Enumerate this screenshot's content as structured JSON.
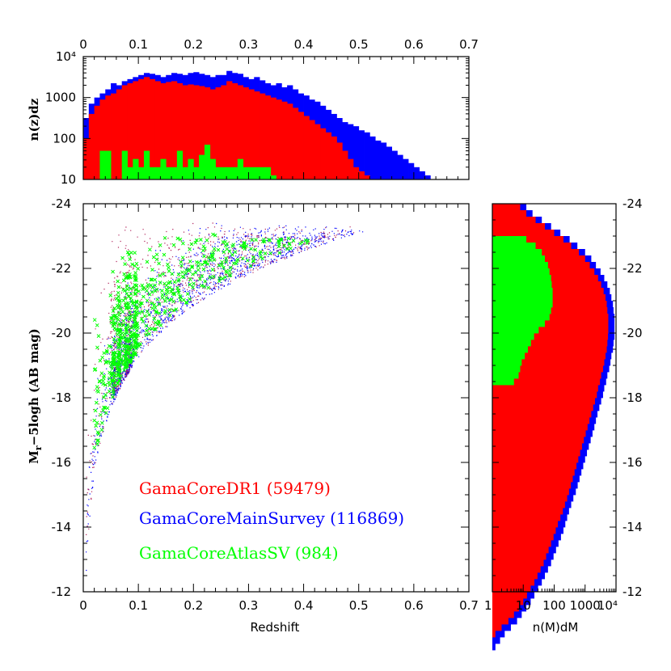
{
  "chart_data": [
    {
      "id": "top_histogram",
      "type": "histogram",
      "ylabel": "n(z)dz",
      "xlim": [
        0,
        0.7
      ],
      "ylim_log10": [
        1,
        4
      ],
      "x_ticks": [
        "0",
        "0.1",
        "0.2",
        "0.3",
        "0.4",
        "0.5",
        "0.6",
        "0.7"
      ],
      "y_ticks": [
        "10",
        "100",
        "1000",
        "10⁴"
      ],
      "bin_width": 0.01,
      "series": [
        {
          "name": "GamaCoreMainSurvey",
          "color": "#0000ff",
          "log10_counts": [
            2.5,
            2.85,
            3.0,
            3.1,
            3.2,
            3.35,
            3.3,
            3.4,
            3.45,
            3.5,
            3.55,
            3.6,
            3.58,
            3.55,
            3.5,
            3.55,
            3.6,
            3.58,
            3.55,
            3.6,
            3.62,
            3.58,
            3.55,
            3.5,
            3.55,
            3.55,
            3.65,
            3.6,
            3.58,
            3.5,
            3.45,
            3.5,
            3.42,
            3.35,
            3.3,
            3.35,
            3.25,
            3.3,
            3.2,
            3.1,
            3.05,
            2.95,
            2.9,
            2.8,
            2.7,
            2.6,
            2.5,
            2.4,
            2.35,
            2.3,
            2.2,
            2.15,
            2.05,
            1.95,
            1.9,
            1.8,
            1.7,
            1.6,
            1.5,
            1.4,
            1.3,
            1.2,
            1.1
          ]
        },
        {
          "name": "GamaCoreDR1",
          "color": "#ff0000",
          "log10_counts": [
            2.0,
            2.6,
            2.8,
            2.95,
            3.05,
            3.1,
            3.2,
            3.3,
            3.35,
            3.4,
            3.45,
            3.5,
            3.45,
            3.4,
            3.35,
            3.38,
            3.4,
            3.35,
            3.3,
            3.32,
            3.3,
            3.28,
            3.25,
            3.2,
            3.25,
            3.3,
            3.4,
            3.35,
            3.3,
            3.25,
            3.2,
            3.15,
            3.1,
            3.05,
            3.0,
            2.95,
            2.9,
            2.85,
            2.75,
            2.65,
            2.55,
            2.45,
            2.35,
            2.25,
            2.15,
            2.05,
            1.9,
            1.7,
            1.5,
            1.3,
            1.2,
            1.1
          ]
        },
        {
          "name": "GamaCoreAtlasSV",
          "color": "#00ff00",
          "log10_counts": [
            0,
            0,
            0,
            1.7,
            1.7,
            1.0,
            1.0,
            1.7,
            1.3,
            1.5,
            1.3,
            1.7,
            1.3,
            1.3,
            1.5,
            1.3,
            1.3,
            1.7,
            1.3,
            1.5,
            1.3,
            1.6,
            1.85,
            1.5,
            1.3,
            1.3,
            1.3,
            1.3,
            1.5,
            1.3,
            1.3,
            1.3,
            1.3,
            1.3,
            1.1
          ]
        }
      ]
    },
    {
      "id": "scatter",
      "type": "scatter",
      "xlabel": "Redshift",
      "ylabel": "M",
      "ylabel_sub": "r",
      "ylabel_rest": "−5logh (AB mag)",
      "xlim": [
        0,
        0.7
      ],
      "ylim": [
        -12,
        -24
      ],
      "x_ticks": [
        "0",
        "0.1",
        "0.2",
        "0.3",
        "0.4",
        "0.5",
        "0.6",
        "0.7"
      ],
      "y_ticks": [
        "-12",
        "-14",
        "-16",
        "-18",
        "-20",
        "-22",
        "-24"
      ],
      "legend": [
        {
          "label": "GamaCoreDR1 (59479)",
          "color": "#ff0000"
        },
        {
          "label": "GamaCoreMainSurvey (116869)",
          "color": "#0000ff"
        },
        {
          "label": "GamaCoreAtlasSV (984)",
          "color": "#00ff00"
        }
      ]
    },
    {
      "id": "right_histogram",
      "type": "histogram",
      "orientation": "horizontal",
      "xlabel": "n(M)dM",
      "x_ticks": [
        "1",
        "10",
        "100",
        "1000",
        "10⁴"
      ],
      "xlim_log10": [
        0,
        4
      ],
      "y_ticks": [
        "-12",
        "-14",
        "-16",
        "-18",
        "-20",
        "-22",
        "-24"
      ],
      "ylim": [
        -12,
        -24
      ],
      "bin_start": -24,
      "bin_width": 0.2,
      "series": [
        {
          "name": "GamaCoreMainSurvey",
          "color": "#0000ff",
          "log10_counts": [
            1.1,
            1.3,
            1.6,
            1.9,
            2.2,
            2.5,
            2.75,
            3.0,
            3.2,
            3.35,
            3.5,
            3.62,
            3.72,
            3.8,
            3.85,
            3.9,
            3.92,
            3.95,
            3.95,
            3.95,
            3.95,
            3.92,
            3.9,
            3.85,
            3.82,
            3.78,
            3.72,
            3.68,
            3.62,
            3.58,
            3.52,
            3.46,
            3.4,
            3.35,
            3.3,
            3.24,
            3.18,
            3.12,
            3.06,
            3.0,
            2.94,
            2.88,
            2.82,
            2.76,
            2.7,
            2.62,
            2.55,
            2.48,
            2.42,
            2.36,
            2.3,
            2.22,
            2.14,
            2.06,
            1.98,
            1.9,
            1.8,
            1.7,
            1.6,
            1.48,
            1.36,
            1.24,
            1.1,
            0.95,
            0.8,
            0.6,
            0.4,
            0.25,
            0.1,
            0.0
          ]
        },
        {
          "name": "GamaCoreDR1",
          "color": "#ff0000",
          "log10_counts": [
            0.9,
            1.1,
            1.4,
            1.7,
            2.0,
            2.3,
            2.55,
            2.8,
            3.0,
            3.15,
            3.3,
            3.42,
            3.52,
            3.6,
            3.66,
            3.7,
            3.72,
            3.75,
            3.75,
            3.75,
            3.74,
            3.72,
            3.7,
            3.66,
            3.62,
            3.58,
            3.52,
            3.48,
            3.42,
            3.38,
            3.32,
            3.26,
            3.2,
            3.14,
            3.08,
            3.02,
            2.96,
            2.9,
            2.84,
            2.78,
            2.72,
            2.66,
            2.6,
            2.54,
            2.48,
            2.42,
            2.35,
            2.28,
            2.2,
            2.12,
            2.05,
            1.98,
            1.9,
            1.82,
            1.74,
            1.66,
            1.56,
            1.46,
            1.36,
            1.24,
            1.12,
            1.0,
            0.86,
            0.7,
            0.52,
            0.3,
            0.1,
            0.0,
            0.0,
            0.0
          ]
        },
        {
          "name": "GamaCoreAtlasSV",
          "color": "#00ff00",
          "log10_counts": [
            0,
            0,
            0,
            0,
            0,
            1.1,
            1.4,
            1.6,
            1.7,
            1.8,
            1.85,
            1.9,
            1.92,
            1.95,
            1.95,
            1.95,
            1.9,
            1.85,
            1.7,
            1.5,
            1.35,
            1.25,
            1.15,
            1.05,
            0.95,
            0.9,
            0.85,
            0.7,
            0,
            0,
            0,
            0,
            0,
            0,
            0,
            0,
            0,
            0,
            0,
            0,
            0,
            0,
            0,
            0,
            0,
            0,
            0,
            0,
            0,
            0,
            0,
            0,
            0,
            0,
            0,
            0,
            0,
            0,
            0,
            0,
            0,
            0,
            0,
            0,
            0,
            0,
            0,
            0,
            0,
            0
          ]
        }
      ]
    }
  ]
}
